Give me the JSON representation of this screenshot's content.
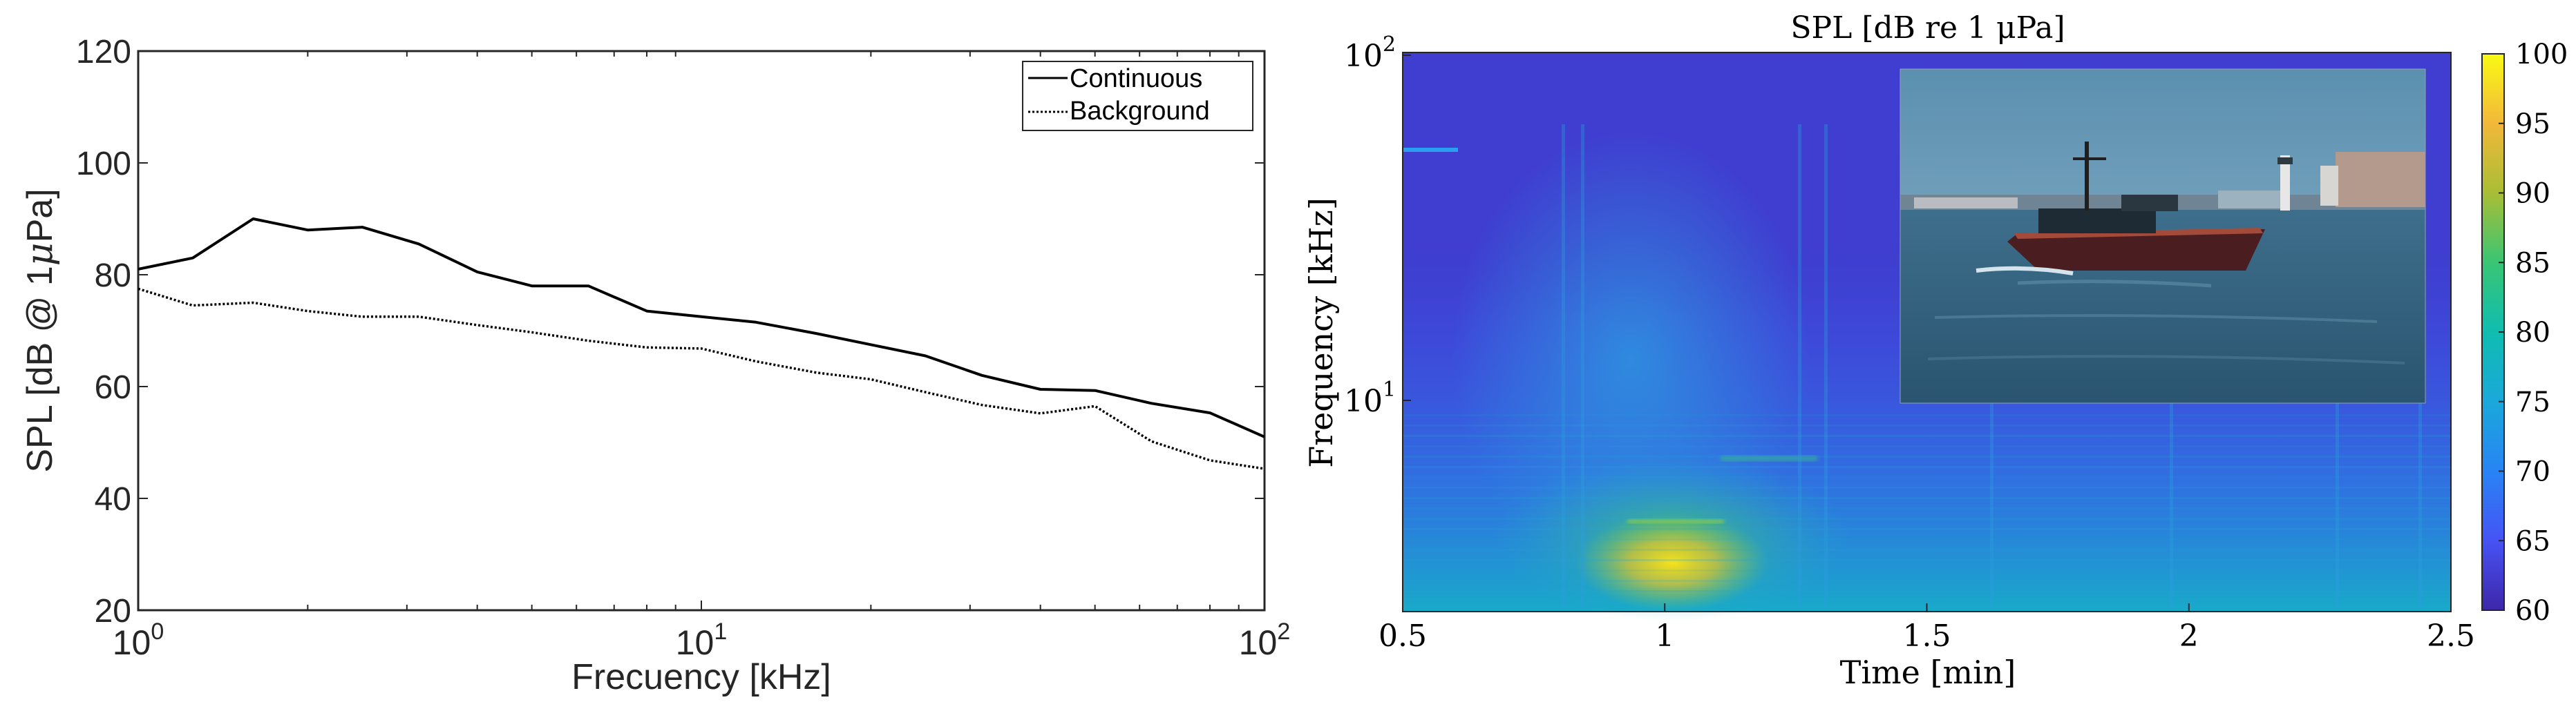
{
  "chart_data": [
    {
      "type": "line",
      "title": "",
      "xlabel": "Frecuency [kHz]",
      "ylabel": "SPL [dB @ 1μPa]",
      "xscale": "log",
      "xlim": [
        1,
        100
      ],
      "ylim": [
        20,
        120
      ],
      "xticks": [
        {
          "value": 1,
          "base": "10",
          "exp": "0"
        },
        {
          "value": 10,
          "base": "10",
          "exp": "1"
        },
        {
          "value": 100,
          "base": "10",
          "exp": "2"
        }
      ],
      "yticks": [
        20,
        40,
        60,
        80,
        100,
        120
      ],
      "grid": false,
      "legend_position": "top-right",
      "series": [
        {
          "name": "Continuous",
          "style": "solid",
          "color": "#000000",
          "x": [
            1,
            1.25,
            1.6,
            2,
            2.5,
            3.15,
            4,
            5,
            6.3,
            8,
            10,
            12.5,
            16,
            20,
            25,
            31.5,
            40,
            50,
            63,
            80,
            100
          ],
          "y": [
            81,
            83,
            90,
            88,
            88.5,
            85.5,
            80.5,
            78,
            78,
            73.5,
            72.5,
            71.5,
            69.5,
            67.5,
            65.5,
            62,
            59.5,
            59.3,
            57,
            55.3,
            51
          ]
        },
        {
          "name": "Background",
          "style": "dotted",
          "color": "#000000",
          "x": [
            1,
            1.25,
            1.6,
            2,
            2.5,
            3.15,
            4,
            5,
            6.3,
            8,
            10,
            12.5,
            16,
            20,
            25,
            31.5,
            40,
            50,
            63,
            80,
            100
          ],
          "y": [
            77.5,
            74.5,
            75,
            73.5,
            72.5,
            72.5,
            71,
            69.7,
            68.2,
            67,
            66.8,
            64.5,
            62.5,
            61.3,
            59,
            56.7,
            55.2,
            56.5,
            50.2,
            46.8,
            45.3
          ]
        }
      ]
    },
    {
      "type": "heatmap",
      "title": "SPL [dB re 1 μPa]",
      "xlabel": "Time [min]",
      "ylabel": "Frequency [kHz]",
      "xlim": [
        0.5,
        2.5
      ],
      "xticks": [
        "0.5",
        "1",
        "1.5",
        "2",
        "2.5"
      ],
      "yscale": "log",
      "yticks": [
        {
          "base": "10",
          "exp": "1"
        },
        {
          "base": "10",
          "exp": "2"
        }
      ],
      "colorbar": {
        "min": 60,
        "max": 100,
        "ticks": [
          60,
          65,
          70,
          75,
          80,
          85,
          90,
          95,
          100
        ],
        "colormap": "parula"
      },
      "features": {
        "background_level_db": 67,
        "low_frequency_peak_db": 92,
        "peak_time_min": 1.0
      },
      "inset_photo": "boat-photo"
    }
  ]
}
